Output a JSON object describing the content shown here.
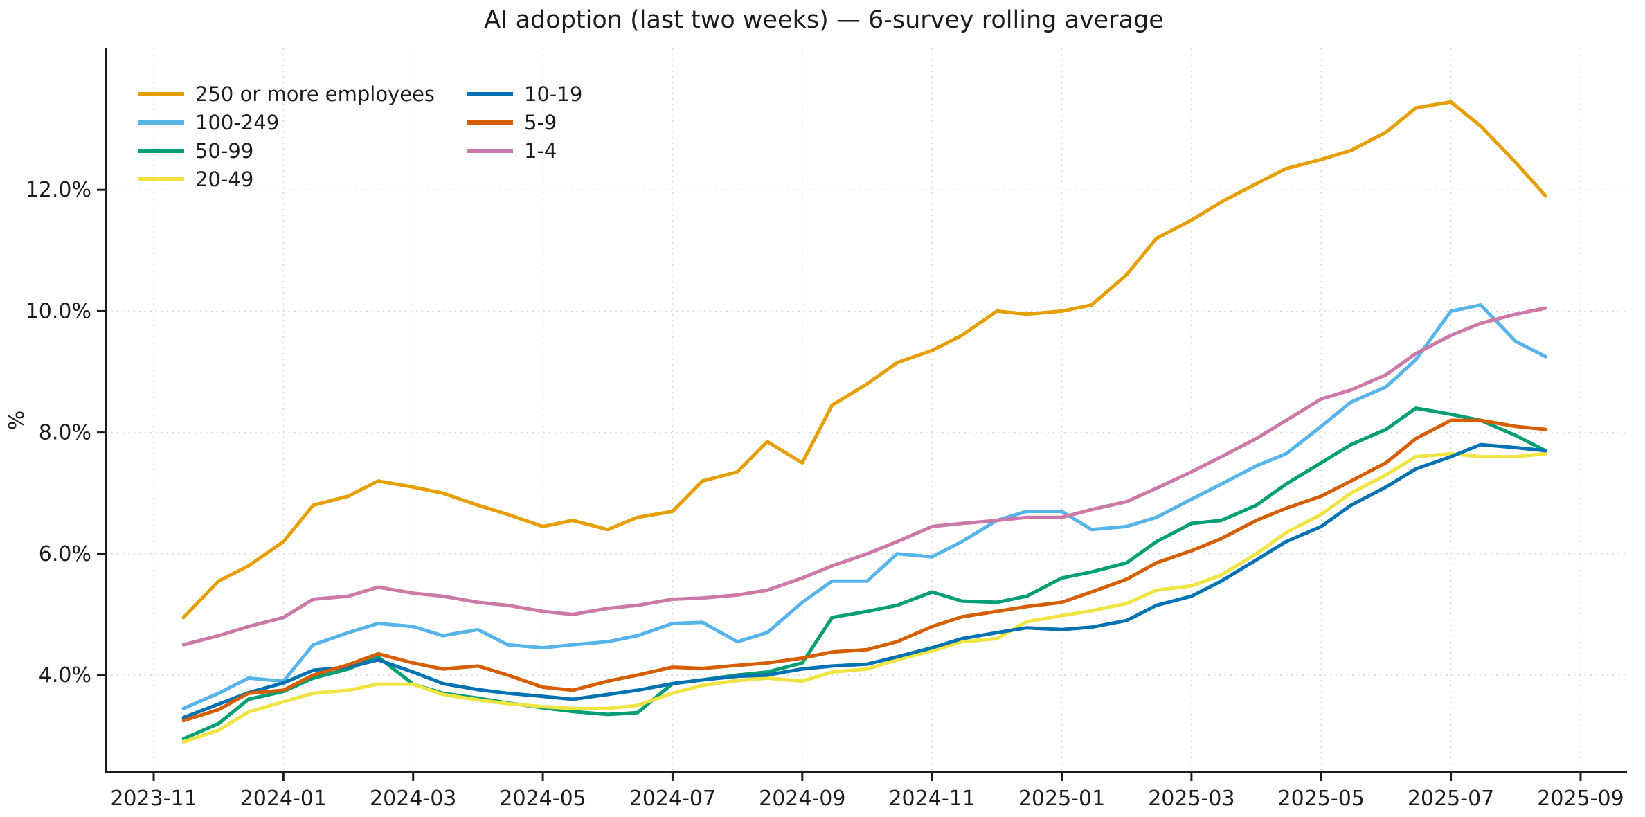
{
  "title": "AI adoption (last two weeks) — 6-survey rolling average",
  "chart_data": {
    "type": "line",
    "title": "AI adoption (last two weeks) — 6-survey rolling average",
    "xlabel": "",
    "ylabel": "%",
    "grid": true,
    "legend_position": "upper left",
    "ylim": [
      2.4,
      14.3
    ],
    "yticks": [
      4,
      6,
      8,
      10,
      12
    ],
    "ytick_labels": [
      "4.0%",
      "6.0%",
      "8.0%",
      "10.0%",
      "12.0%"
    ],
    "xtick_labels": [
      "2023-11",
      "2024-01",
      "2024-03",
      "2024-05",
      "2024-07",
      "2024-09",
      "2024-11",
      "2025-01",
      "2025-03",
      "2025-05",
      "2025-07",
      "2025-09"
    ],
    "x": [
      "2023-11-15",
      "2023-12-01",
      "2023-12-15",
      "2024-01-01",
      "2024-01-15",
      "2024-02-01",
      "2024-02-15",
      "2024-03-01",
      "2024-03-15",
      "2024-04-01",
      "2024-04-15",
      "2024-05-01",
      "2024-05-15",
      "2024-06-01",
      "2024-06-15",
      "2024-07-01",
      "2024-07-15",
      "2024-08-01",
      "2024-08-15",
      "2024-09-01",
      "2024-09-15",
      "2024-10-01",
      "2024-10-15",
      "2024-11-01",
      "2024-11-15",
      "2024-12-01",
      "2024-12-15",
      "2025-01-01",
      "2025-01-15",
      "2025-02-01",
      "2025-02-15",
      "2025-03-01",
      "2025-03-15",
      "2025-04-01",
      "2025-04-15",
      "2025-05-01",
      "2025-05-15",
      "2025-06-01",
      "2025-06-15",
      "2025-07-01",
      "2025-07-15",
      "2025-08-01",
      "2025-08-15"
    ],
    "series": [
      {
        "name": "250 or more employees",
        "color": "#E69F00",
        "values": [
          4.95,
          5.55,
          5.8,
          6.2,
          6.8,
          6.95,
          7.2,
          7.1,
          7.0,
          6.8,
          6.65,
          6.45,
          6.55,
          6.4,
          6.6,
          6.7,
          7.2,
          7.35,
          7.85,
          7.5,
          8.45,
          8.8,
          9.15,
          9.35,
          9.6,
          10.0,
          9.95,
          10.0,
          10.1,
          10.6,
          11.2,
          11.5,
          11.8,
          12.1,
          12.35,
          12.5,
          12.65,
          12.95,
          13.35,
          13.45,
          13.05,
          12.45,
          11.9
        ]
      },
      {
        "name": "100-249",
        "color": "#56B4E9",
        "values": [
          3.45,
          3.7,
          3.95,
          3.9,
          4.5,
          4.7,
          4.85,
          4.8,
          4.65,
          4.75,
          4.5,
          4.45,
          4.5,
          4.55,
          4.65,
          4.85,
          4.87,
          4.55,
          4.7,
          5.2,
          5.55,
          5.55,
          6.0,
          5.95,
          6.2,
          6.55,
          6.7,
          6.7,
          6.4,
          6.45,
          6.6,
          6.9,
          7.15,
          7.45,
          7.65,
          8.1,
          8.5,
          8.75,
          9.2,
          10.0,
          10.1,
          9.5,
          9.25
        ]
      },
      {
        "name": "50-99",
        "color": "#009E73",
        "values": [
          2.95,
          3.2,
          3.6,
          3.73,
          3.95,
          4.1,
          4.3,
          3.85,
          3.7,
          3.62,
          3.54,
          3.46,
          3.4,
          3.35,
          3.38,
          3.86,
          3.92,
          4.0,
          4.05,
          4.2,
          4.95,
          5.05,
          5.15,
          5.37,
          5.22,
          5.2,
          5.3,
          5.6,
          5.7,
          5.85,
          6.2,
          6.5,
          6.55,
          6.8,
          7.15,
          7.5,
          7.8,
          8.05,
          8.4,
          8.3,
          8.2,
          7.95,
          7.7
        ]
      },
      {
        "name": "20-49",
        "color": "#F0E442",
        "values": [
          2.9,
          3.09,
          3.39,
          3.56,
          3.7,
          3.75,
          3.85,
          3.85,
          3.68,
          3.59,
          3.53,
          3.48,
          3.45,
          3.45,
          3.5,
          3.7,
          3.83,
          3.91,
          3.95,
          3.9,
          4.05,
          4.1,
          4.25,
          4.4,
          4.55,
          4.6,
          4.88,
          4.98,
          5.06,
          5.18,
          5.4,
          5.47,
          5.65,
          6.0,
          6.35,
          6.65,
          7.0,
          7.3,
          7.6,
          7.65,
          7.6,
          7.6,
          7.65
        ]
      },
      {
        "name": "10-19",
        "color": "#0072B2",
        "values": [
          3.3,
          3.52,
          3.71,
          3.87,
          4.08,
          4.13,
          4.25,
          4.05,
          3.86,
          3.76,
          3.7,
          3.65,
          3.6,
          3.68,
          3.75,
          3.86,
          3.92,
          3.98,
          4.0,
          4.1,
          4.15,
          4.18,
          4.3,
          4.45,
          4.6,
          4.7,
          4.78,
          4.75,
          4.79,
          4.9,
          5.15,
          5.3,
          5.55,
          5.9,
          6.2,
          6.45,
          6.8,
          7.1,
          7.4,
          7.6,
          7.8,
          7.75,
          7.7
        ]
      },
      {
        "name": "5-9",
        "color": "#D55E00",
        "values": [
          3.25,
          3.43,
          3.7,
          3.75,
          4.0,
          4.17,
          4.35,
          4.2,
          4.1,
          4.15,
          4.0,
          3.8,
          3.75,
          3.9,
          4.0,
          4.13,
          4.11,
          4.16,
          4.2,
          4.28,
          4.38,
          4.42,
          4.55,
          4.8,
          4.96,
          5.05,
          5.13,
          5.2,
          5.37,
          5.58,
          5.85,
          6.05,
          6.25,
          6.55,
          6.75,
          6.95,
          7.2,
          7.5,
          7.9,
          8.2,
          8.2,
          8.1,
          8.05
        ]
      },
      {
        "name": "1-4",
        "color": "#CC79A7",
        "values": [
          4.5,
          4.65,
          4.8,
          4.95,
          5.25,
          5.3,
          5.45,
          5.35,
          5.3,
          5.2,
          5.15,
          5.05,
          5.0,
          5.1,
          5.15,
          5.25,
          5.27,
          5.32,
          5.4,
          5.6,
          5.8,
          6.0,
          6.2,
          6.45,
          6.5,
          6.55,
          6.6,
          6.6,
          6.73,
          6.86,
          7.08,
          7.35,
          7.6,
          7.9,
          8.2,
          8.55,
          8.7,
          8.95,
          9.3,
          9.6,
          9.8,
          9.95,
          10.05
        ]
      }
    ]
  }
}
